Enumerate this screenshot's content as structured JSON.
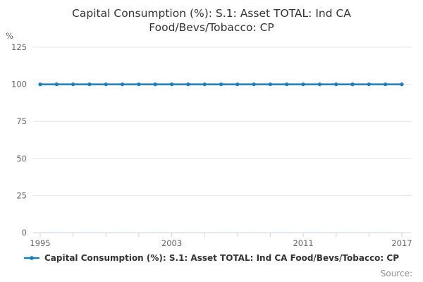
{
  "header": {
    "title": "Capital Consumption (%): S.1: Asset TOTAL: Ind CA Food/Bevs/Tobacco: CP"
  },
  "footer": {
    "source_label": "Source:"
  },
  "chart_data": {
    "type": "line",
    "title": "Capital Consumption (%): S.1: Asset TOTAL: Ind CA Food/Bevs/Tobacco: CP",
    "xlabel": "",
    "ylabel": "%",
    "x": [
      1995,
      1996,
      1997,
      1998,
      1999,
      2000,
      2001,
      2002,
      2003,
      2004,
      2005,
      2006,
      2007,
      2008,
      2009,
      2010,
      2011,
      2012,
      2013,
      2014,
      2015,
      2016,
      2017
    ],
    "series": [
      {
        "name": "Capital Consumption (%): S.1: Asset TOTAL: Ind CA Food/Bevs/Tobacco: CP",
        "values": [
          100,
          100,
          100,
          100,
          100,
          100,
          100,
          100,
          100,
          100,
          100,
          100,
          100,
          100,
          100,
          100,
          100,
          100,
          100,
          100,
          100,
          100,
          100
        ],
        "color": "#1280c5"
      }
    ],
    "xlim": [
      1995,
      2017
    ],
    "ylim": [
      0,
      125
    ],
    "yticks": [
      0,
      25,
      50,
      75,
      100,
      125
    ],
    "xticks_minor": [
      1995,
      1997,
      1999,
      2001,
      2003,
      2005,
      2007,
      2009,
      2011,
      2013,
      2015,
      2017
    ],
    "xticks_labeled": [
      1995,
      2003,
      2011,
      2017
    ],
    "grid": true,
    "legend_position": "bottom",
    "marker": "circle",
    "colors": {
      "grid_line": "#e5e5e5",
      "axis_line": "#c9d7e4",
      "tick_label": "#666666",
      "title_text": "#333333",
      "legend_text": "#333333",
      "source_text": "#8c8c8c"
    }
  }
}
